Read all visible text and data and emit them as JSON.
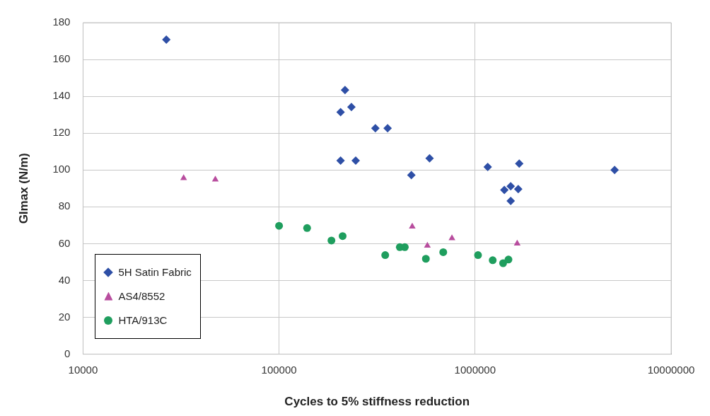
{
  "chart_data": {
    "type": "scatter",
    "xlabel": "Cycles to 5% stiffness reduction",
    "ylabel": "GImax (N/m)",
    "log": "x",
    "grid": true,
    "legend": "bottom left",
    "xlim": [
      10000,
      10000000
    ],
    "xticks": [
      10000,
      100000,
      1000000,
      10000000
    ],
    "ylim": [
      0,
      180
    ],
    "yticks": [
      0,
      20,
      40,
      60,
      80,
      100,
      120,
      140,
      160,
      180
    ],
    "series": [
      {
        "name": "5H Satin Fabric",
        "color": "#2e4fa6",
        "marker": "diamond",
        "x": [
          26600,
          217000,
          206000,
          234000,
          310000,
          358000,
          206000,
          246000,
          473000,
          586000,
          1160000,
          1410000,
          1520000,
          1660000,
          1520000,
          1680000,
          5150000
        ],
        "values": [
          170.8,
          143.4,
          131.4,
          134.2,
          122.7,
          122.7,
          105.1,
          105.1,
          97.2,
          106.3,
          101.6,
          89.2,
          91.2,
          89.6,
          83.2,
          103.5,
          100
        ]
      },
      {
        "name": "AS4/8552",
        "color": "#b84d9e",
        "marker": "triangle",
        "x": [
          32600,
          47300,
          478000,
          571000,
          762000,
          1640000
        ],
        "values": [
          95.6,
          94.8,
          69.3,
          58.9,
          62.9,
          60.1
        ]
      },
      {
        "name": "HTA/913C",
        "color": "#1f9e5e",
        "marker": "circle",
        "x": [
          100000,
          139000,
          185000,
          211000,
          348000,
          413000,
          438000,
          561000,
          688000,
          1035000,
          1230000,
          1390000,
          1480000
        ],
        "values": [
          69.7,
          68.5,
          61.7,
          64.1,
          53.8,
          58.1,
          58.1,
          51.8,
          55.4,
          53.8,
          51.0,
          49.4,
          51.4
        ]
      }
    ]
  }
}
